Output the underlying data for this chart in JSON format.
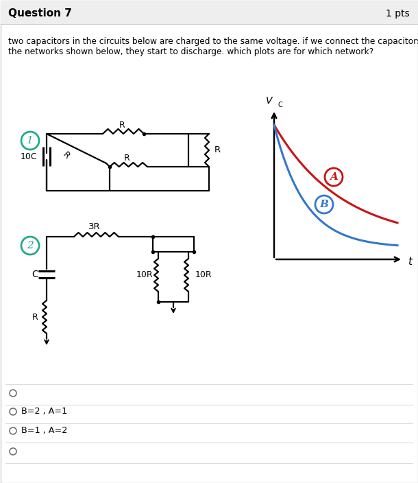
{
  "title": "Question 7",
  "pts": "1 pts",
  "q_line1": "two capacitors in the circuits below are charged to the same voltage. if we connect the capacitors to",
  "q_line2": "the networks shown below, they start to discharge. which plots are for which network?",
  "bg_color": "#ffffff",
  "header_bg": "#eeeeee",
  "border_color": "#cccccc",
  "sep_color": "#dddddd",
  "options": [
    "",
    "B=2 , A=1",
    "B=1 , A=2",
    ""
  ],
  "curve_A_color": "#cc1111",
  "curve_B_color": "#3377cc",
  "circ1_color": "#22aa88",
  "circ2_color": "#22aa88",
  "text_color": "#222222",
  "dpi": 100,
  "fig_w": 6.1,
  "fig_h": 7.04
}
